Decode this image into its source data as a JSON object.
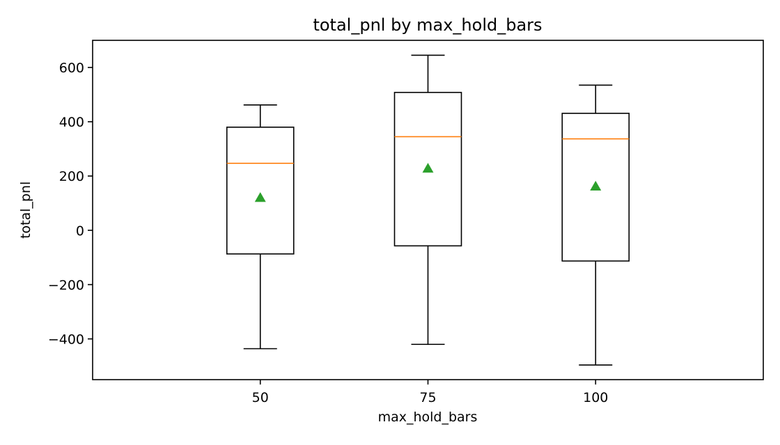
{
  "chart_data": {
    "type": "box",
    "title": "total_pnl by max_hold_bars",
    "xlabel": "max_hold_bars",
    "ylabel": "total_pnl",
    "categories": [
      "50",
      "75",
      "100"
    ],
    "ylim": [
      -550,
      700
    ],
    "yticks": [
      -400,
      -200,
      0,
      200,
      400,
      600
    ],
    "ytick_labels": [
      "−400",
      "−200",
      "0",
      "200",
      "400",
      "600"
    ],
    "grid": false,
    "boxes": [
      {
        "category": "50",
        "whisker_low": -436,
        "q1": -87,
        "median": 247,
        "q3": 380,
        "whisker_high": 462,
        "mean": 120
      },
      {
        "category": "75",
        "whisker_low": -420,
        "q1": -57,
        "median": 345,
        "q3": 508,
        "whisker_high": 645,
        "mean": 228
      },
      {
        "category": "100",
        "whisker_low": -496,
        "q1": -113,
        "median": 337,
        "q3": 431,
        "whisker_high": 535,
        "mean": 162
      }
    ],
    "colors": {
      "box": "#000000",
      "median": "#ff7f0e",
      "mean": "#2ca02c"
    }
  }
}
